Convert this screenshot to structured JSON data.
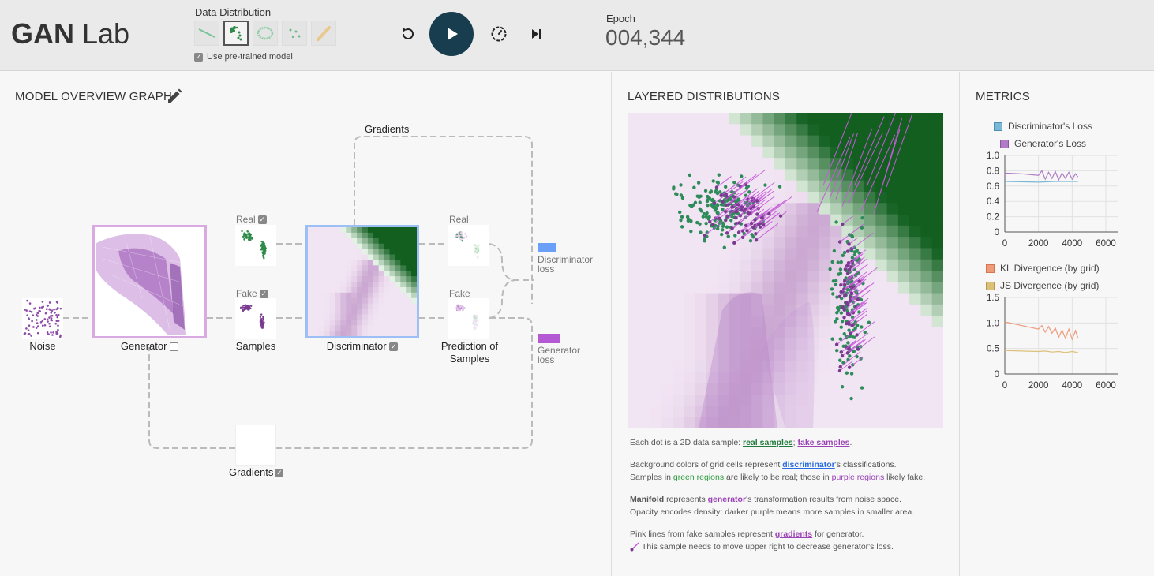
{
  "app": {
    "title_bold": "GAN",
    "title_light": "Lab"
  },
  "header": {
    "distribution_label": "Data Distribution",
    "distributions": [
      "line",
      "two-gaussian-clusters",
      "ring",
      "scattered-points",
      "drawing"
    ],
    "selected_distribution": 1,
    "pretrained_label": "Use pre-trained model",
    "pretrained_checked": true,
    "epoch_label": "Epoch",
    "epoch_value": "004,344",
    "controls": [
      "reset-icon",
      "play-icon",
      "slow-motion-icon",
      "step-icon"
    ]
  },
  "overview": {
    "title": "MODEL OVERVIEW GRAPH",
    "nodes": {
      "noise": "Noise",
      "generator": "Generator",
      "samples": "Samples",
      "discriminator": "Discriminator",
      "prediction": "Prediction of Samples",
      "gradients_bottom": "Gradients",
      "gradients_top": "Gradients",
      "real_small": "Real",
      "fake_small": "Fake",
      "real_pred": "Real",
      "fake_pred": "Fake",
      "disc_loss_1": "Discriminator",
      "disc_loss_2": "loss",
      "gen_loss_1": "Generator",
      "gen_loss_2": "loss"
    },
    "colors": {
      "disc_loss": "#6aa0f7",
      "gen_loss": "#b458d4"
    }
  },
  "layered": {
    "title": "LAYERED DISTRIBUTIONS",
    "desc": {
      "l1_pre": "Each dot is a 2D data sample: ",
      "l1_real": "real samples",
      "l1_sep": "; ",
      "l1_fake": "fake samples",
      "l1_end": ".",
      "l2_pre": "Background colors of grid cells represent ",
      "l2_link": "discriminator",
      "l2_end": "'s classifications.",
      "l3_a": "Samples in ",
      "l3_green": "green regions",
      "l3_b": " are likely to be real; those in ",
      "l3_purple": "purple regions",
      "l3_c": " likely fake.",
      "l4_bold": "Manifold",
      "l4_a": " represents ",
      "l4_link": "generator",
      "l4_b": "'s transformation results from noise space.",
      "l5": "Opacity encodes density: darker purple means more samples in smaller area.",
      "l6_a": "Pink lines from fake samples represent ",
      "l6_link": "gradients",
      "l6_b": " for generator.",
      "l7": "This sample needs to move upper right to decrease generator's loss."
    }
  },
  "metrics": {
    "title": "METRICS",
    "chart1": {
      "legend": [
        "Discriminator's Loss",
        "Generator's Loss"
      ],
      "colors": [
        "#7bb8d6",
        "#b07cc6"
      ],
      "yticks": [
        "1.0",
        "0.8",
        "0.6",
        "0.4",
        "0.2",
        "0"
      ],
      "xticks": [
        "0",
        "2000",
        "4000",
        "6000"
      ]
    },
    "chart2": {
      "legend": [
        "KL Divergence (by grid)",
        "JS Divergence (by grid)"
      ],
      "colors": [
        "#ee9b7b",
        "#dcc07a"
      ],
      "yticks": [
        "1.5",
        "1.0",
        "0.5",
        "0"
      ],
      "xticks": [
        "0",
        "2000",
        "4000",
        "6000"
      ]
    }
  },
  "chart_data": [
    {
      "type": "line",
      "ylim": [
        0,
        1.0
      ],
      "xlim": [
        0,
        6000
      ],
      "series": [
        {
          "name": "Discriminator's Loss",
          "x": [
            0,
            2000,
            3000,
            4344
          ],
          "values": [
            0.66,
            0.65,
            0.66,
            0.66
          ]
        },
        {
          "name": "Generator's Loss",
          "x": [
            0,
            1000,
            2000,
            2200,
            2400,
            2600,
            2800,
            3000,
            3200,
            3400,
            3600,
            3800,
            4000,
            4200,
            4344
          ],
          "values": [
            0.77,
            0.76,
            0.74,
            0.8,
            0.69,
            0.78,
            0.7,
            0.79,
            0.68,
            0.77,
            0.7,
            0.78,
            0.69,
            0.76,
            0.72
          ]
        }
      ]
    },
    {
      "type": "line",
      "ylim": [
        0,
        1.5
      ],
      "xlim": [
        0,
        6000
      ],
      "series": [
        {
          "name": "KL Divergence (by grid)",
          "x": [
            0,
            1000,
            2000,
            2200,
            2400,
            2600,
            2800,
            3000,
            3200,
            3400,
            3600,
            3800,
            4000,
            4200,
            4344
          ],
          "values": [
            1.02,
            0.95,
            0.88,
            0.95,
            0.82,
            0.93,
            0.8,
            0.9,
            0.72,
            0.86,
            0.7,
            0.88,
            0.68,
            0.85,
            0.7
          ]
        },
        {
          "name": "JS Divergence (by grid)",
          "x": [
            0,
            1000,
            2000,
            2400,
            2800,
            3200,
            3600,
            4000,
            4344
          ],
          "values": [
            0.46,
            0.45,
            0.44,
            0.45,
            0.43,
            0.44,
            0.42,
            0.44,
            0.42
          ]
        }
      ]
    }
  ]
}
